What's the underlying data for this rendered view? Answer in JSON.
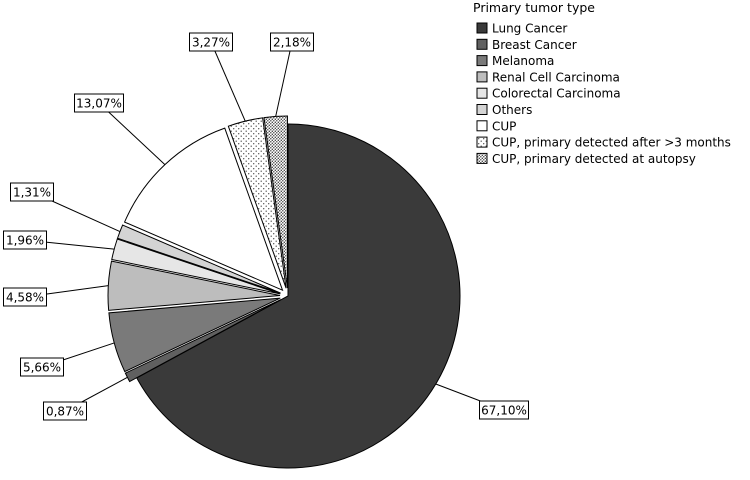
{
  "chart_data": {
    "type": "pie",
    "legend_title": "Primary tumor type",
    "legend_position": "top-right",
    "slices": [
      {
        "name": "Lung Cancer",
        "value": 67.1,
        "label": "67,10%",
        "color": "#3a3a3a",
        "pattern": "solid",
        "exploded": false
      },
      {
        "name": "Breast Cancer",
        "value": 0.87,
        "label": "0,87%",
        "color": "#606060",
        "pattern": "solid",
        "exploded": true
      },
      {
        "name": "Melanoma",
        "value": 5.66,
        "label": "5,66%",
        "color": "#7a7a7a",
        "pattern": "solid",
        "exploded": true
      },
      {
        "name": "Renal Cell Carcinoma",
        "value": 4.58,
        "label": "4,58%",
        "color": "#bdbdbd",
        "pattern": "solid",
        "exploded": true
      },
      {
        "name": "Colorectal Carcinoma",
        "value": 1.96,
        "label": "1,96%",
        "color": "#e6e6e6",
        "pattern": "solid",
        "exploded": true
      },
      {
        "name": "Others",
        "value": 1.31,
        "label": "1,31%",
        "color": "#d4d4d4",
        "pattern": "solid",
        "exploded": true
      },
      {
        "name": "CUP",
        "value": 13.07,
        "label": "13,07%",
        "color": "#ffffff",
        "pattern": "solid",
        "exploded": true
      },
      {
        "name": "CUP, primary detected after >3 months",
        "value": 3.27,
        "label": "3,27%",
        "color": "#ffffff",
        "pattern": "sparse-dots",
        "exploded": true
      },
      {
        "name": "CUP, primary detected at autopsy",
        "value": 2.18,
        "label": "2,18%",
        "color": "#ffffff",
        "pattern": "dense-dots",
        "exploded": true
      }
    ]
  }
}
